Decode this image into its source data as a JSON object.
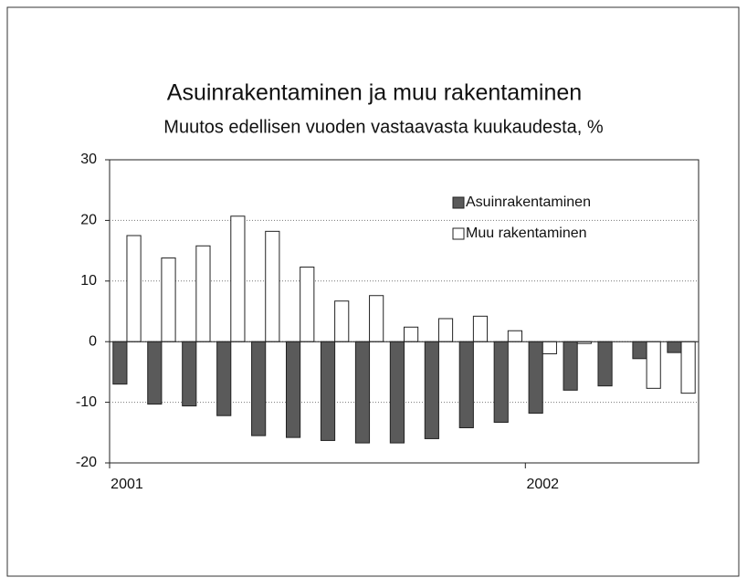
{
  "chart_data": {
    "type": "bar",
    "title": "Asuinrakentaminen ja muu rakentaminen",
    "subtitle": "Muutos edellisen vuoden vastaavasta kuukaudesta, %",
    "categories": [
      "2001",
      null,
      null,
      null,
      null,
      null,
      null,
      null,
      null,
      null,
      null,
      null,
      "2002",
      null,
      null,
      null,
      null
    ],
    "series": [
      {
        "name": "Asuinrakentaminen",
        "color": "#5a5a5a",
        "values": [
          -7,
          -10.3,
          -10.6,
          -12.2,
          -15.5,
          -15.8,
          -16.3,
          -16.7,
          -16.7,
          -16,
          -14.2,
          -13.3,
          -11.8,
          -8,
          -7.3,
          -2.8,
          -1.8
        ]
      },
      {
        "name": "Muu rakentaminen",
        "color": "#ffffff",
        "values": [
          17.5,
          13.8,
          15.8,
          20.7,
          18.2,
          12.3,
          6.7,
          7.6,
          2.4,
          3.8,
          4.2,
          1.8,
          -2,
          -0.3,
          0,
          -7.7,
          -8.5
        ]
      }
    ],
    "ylim": [
      -20,
      30
    ],
    "yticks": [
      -20,
      -10,
      0,
      10,
      20,
      30
    ],
    "grid": true,
    "legend": "top-right"
  }
}
